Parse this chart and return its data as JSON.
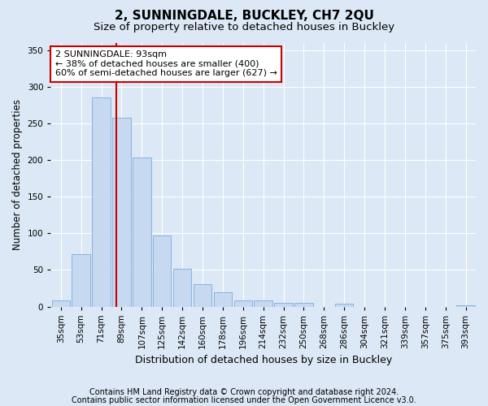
{
  "title1": "2, SUNNINGDALE, BUCKLEY, CH7 2QU",
  "title2": "Size of property relative to detached houses in Buckley",
  "xlabel": "Distribution of detached houses by size in Buckley",
  "ylabel": "Number of detached properties",
  "categories": [
    "35sqm",
    "53sqm",
    "71sqm",
    "89sqm",
    "107sqm",
    "125sqm",
    "142sqm",
    "160sqm",
    "178sqm",
    "196sqm",
    "214sqm",
    "232sqm",
    "250sqm",
    "268sqm",
    "286sqm",
    "304sqm",
    "321sqm",
    "339sqm",
    "357sqm",
    "375sqm",
    "393sqm"
  ],
  "values": [
    8,
    71,
    285,
    258,
    203,
    97,
    52,
    30,
    19,
    8,
    8,
    5,
    5,
    0,
    4,
    0,
    0,
    0,
    0,
    0,
    2
  ],
  "bar_color": "#c6d9f0",
  "bar_edgecolor": "#7aabdb",
  "vline_color": "#cc0000",
  "annotation_line1": "2 SUNNINGDALE: 93sqm",
  "annotation_line2": "← 38% of detached houses are smaller (400)",
  "annotation_line3": "60% of semi-detached houses are larger (627) →",
  "annotation_box_color": "#ffffff",
  "annotation_box_edgecolor": "#cc0000",
  "ylim": [
    0,
    360
  ],
  "yticks": [
    0,
    50,
    100,
    150,
    200,
    250,
    300,
    350
  ],
  "footnote1": "Contains HM Land Registry data © Crown copyright and database right 2024.",
  "footnote2": "Contains public sector information licensed under the Open Government Licence v3.0.",
  "background_color": "#dce8f5",
  "plot_bg_color": "#dce8f5",
  "title1_fontsize": 11,
  "title2_fontsize": 9.5,
  "xlabel_fontsize": 9,
  "ylabel_fontsize": 8.5,
  "tick_fontsize": 7.5,
  "annotation_fontsize": 8,
  "footnote_fontsize": 7
}
